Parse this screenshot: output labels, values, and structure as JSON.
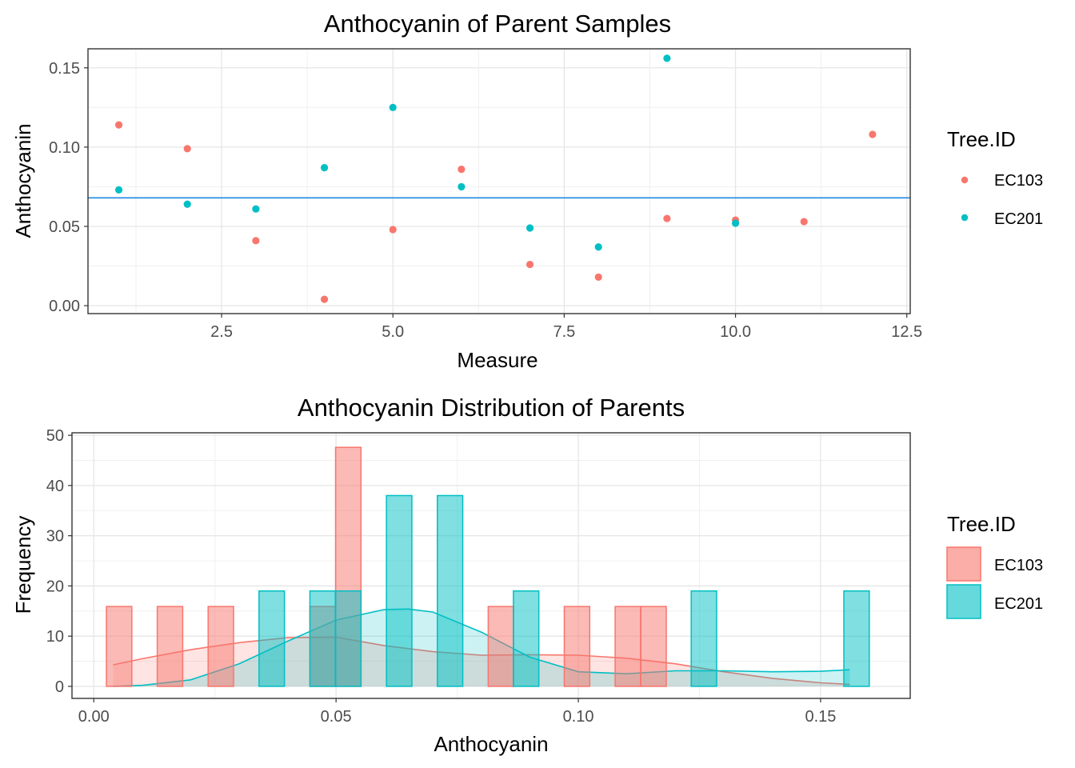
{
  "colors": {
    "ec103": "#F8766D",
    "ec201": "#00BFC4",
    "hline": "#1e88e5"
  },
  "chart_data": [
    {
      "type": "scatter",
      "title": "Anthocyanin of Parent Samples",
      "xlabel": "Measure",
      "ylabel": "Anthocyanin",
      "xlim": [
        0.55,
        12.55
      ],
      "ylim": [
        -0.005,
        0.162
      ],
      "x_ticks": [
        2.5,
        5.0,
        7.5,
        10.0,
        12.5
      ],
      "x_tick_labels": [
        "2.5",
        "5.0",
        "7.5",
        "10.0",
        "12.5"
      ],
      "y_ticks": [
        0.0,
        0.05,
        0.1,
        0.15
      ],
      "y_tick_labels": [
        "0.00",
        "0.05",
        "0.10",
        "0.15"
      ],
      "hline": 0.068,
      "legend_title": "Tree.ID",
      "legend_position": "right",
      "grid": true,
      "series": [
        {
          "name": "EC103",
          "color_key": "ec103",
          "x": [
            1,
            2,
            3,
            4,
            5,
            6,
            7,
            8,
            9,
            10,
            11,
            12
          ],
          "y": [
            0.114,
            0.099,
            0.041,
            0.004,
            0.048,
            0.086,
            0.026,
            0.018,
            0.055,
            0.054,
            0.053,
            0.108
          ]
        },
        {
          "name": "EC201",
          "color_key": "ec201",
          "x": [
            1,
            2,
            3,
            4,
            5,
            6,
            7,
            8,
            9,
            10
          ],
          "y": [
            0.073,
            0.064,
            0.061,
            0.087,
            0.125,
            0.075,
            0.049,
            0.037,
            0.156,
            0.052
          ]
        }
      ]
    },
    {
      "type": "bar",
      "title": "Anthocyanin Distribution of Parents",
      "xlabel": "Anthocyanin",
      "ylabel": "Frequency",
      "xlim": [
        -0.0045,
        0.1685
      ],
      "ylim": [
        -2.4,
        50.5
      ],
      "x_ticks": [
        0.0,
        0.05,
        0.1,
        0.15
      ],
      "x_tick_labels": [
        "0.00",
        "0.05",
        "0.10",
        "0.15"
      ],
      "y_ticks": [
        0,
        10,
        20,
        30,
        40,
        50
      ],
      "y_tick_labels": [
        "0",
        "10",
        "20",
        "30",
        "40",
        "50"
      ],
      "bin_width": 0.00525,
      "legend_title": "Tree.ID",
      "legend_position": "right",
      "grid": true,
      "series": [
        {
          "name": "EC103",
          "color_key": "ec103",
          "bin_left": [
            0.0026,
            0.0131,
            0.0236,
            0.0446,
            0.0499,
            0.0814,
            0.0971,
            0.1076,
            0.1129
          ],
          "frequency": [
            15.9,
            15.9,
            15.9,
            15.9,
            47.6,
            15.9,
            15.9,
            15.9,
            15.9
          ],
          "density_x": [
            0.004,
            0.01,
            0.02,
            0.03,
            0.04,
            0.05,
            0.06,
            0.07,
            0.08,
            0.09,
            0.1,
            0.11,
            0.12,
            0.13,
            0.14,
            0.15,
            0.156
          ],
          "density_y": [
            4.3,
            5.5,
            7.3,
            8.7,
            9.7,
            9.8,
            8.1,
            6.9,
            6.2,
            6.3,
            6.2,
            5.6,
            4.5,
            2.9,
            1.6,
            0.7,
            0.4
          ]
        },
        {
          "name": "EC201",
          "color_key": "ec201",
          "bin_left": [
            0.0341,
            0.0446,
            0.0499,
            0.0604,
            0.0709,
            0.0866,
            0.1233,
            0.1548
          ],
          "frequency": [
            19.0,
            19.0,
            19.0,
            38.0,
            38.0,
            19.0,
            19.0,
            19.0
          ],
          "density_x": [
            0.004,
            0.01,
            0.02,
            0.03,
            0.04,
            0.05,
            0.06,
            0.065,
            0.07,
            0.08,
            0.09,
            0.1,
            0.11,
            0.12,
            0.13,
            0.14,
            0.15,
            0.156
          ],
          "density_y": [
            0.0,
            0.2,
            1.3,
            4.5,
            9.0,
            13.2,
            15.3,
            15.4,
            14.8,
            10.8,
            5.8,
            2.9,
            2.5,
            3.1,
            3.1,
            2.9,
            3.0,
            3.3
          ]
        }
      ]
    }
  ]
}
